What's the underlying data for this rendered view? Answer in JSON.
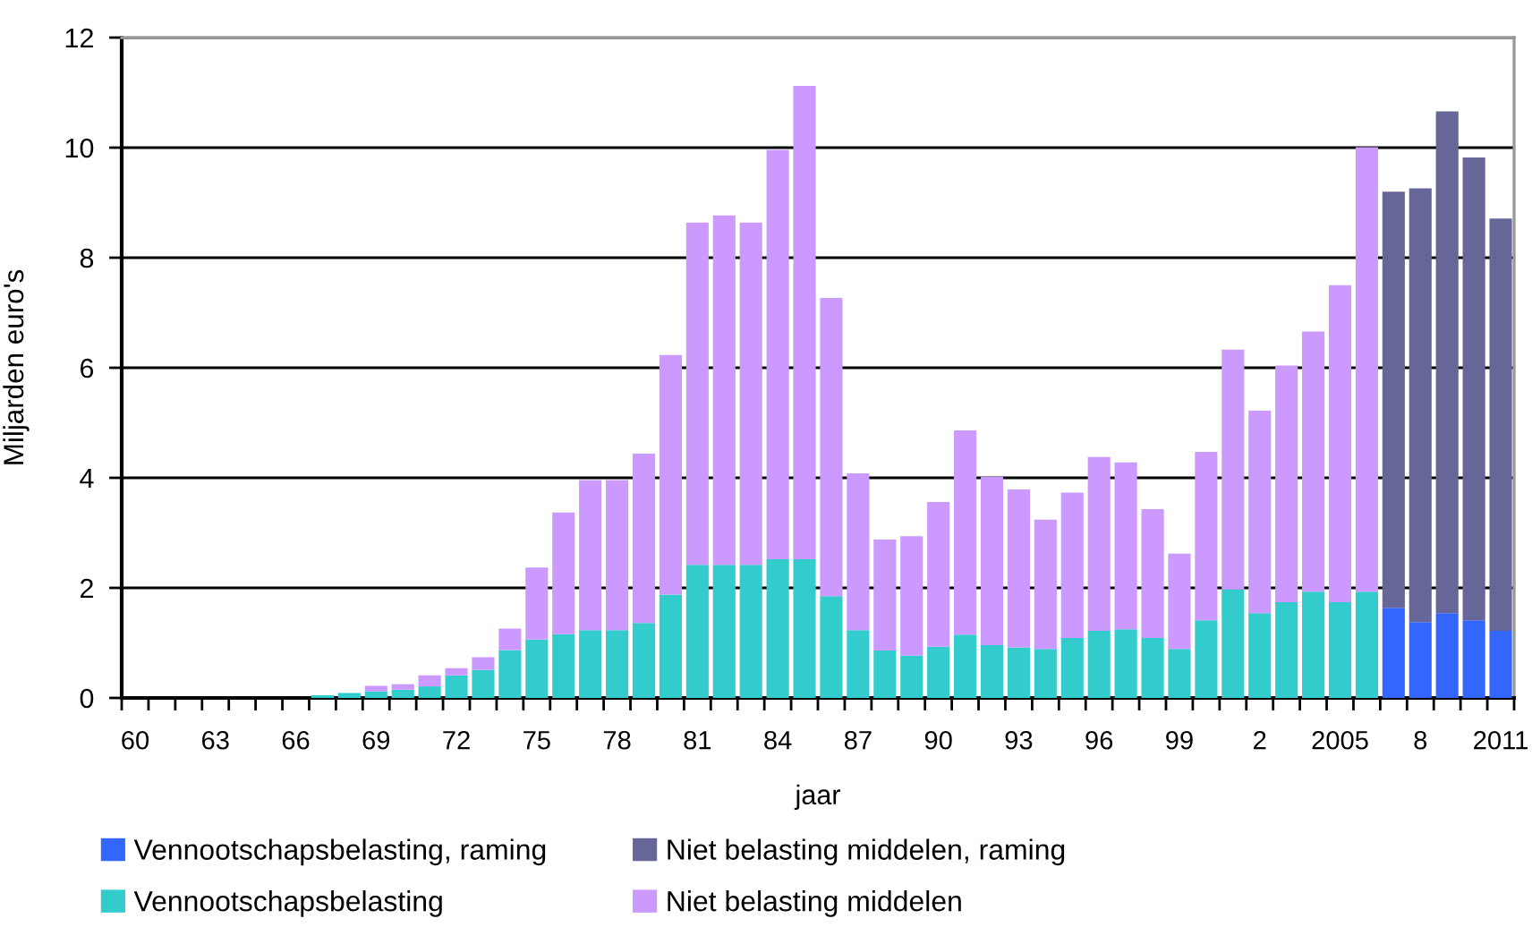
{
  "chart_data": {
    "type": "bar",
    "stacked": true,
    "categories": [
      "60",
      null,
      null,
      "63",
      null,
      null,
      "66",
      null,
      null,
      "69",
      null,
      null,
      "72",
      null,
      null,
      "75",
      null,
      null,
      "78",
      null,
      null,
      "81",
      null,
      null,
      "84",
      null,
      null,
      "87",
      null,
      null,
      "90",
      null,
      null,
      "93",
      null,
      null,
      "96",
      null,
      null,
      "99",
      null,
      null,
      "2",
      null,
      null,
      "2005",
      null,
      null,
      "8",
      null,
      null,
      "2011"
    ],
    "series": [
      {
        "name": "Vennootschapsbelasting, raming",
        "color": "#3366ff",
        "values": [
          null,
          null,
          null,
          null,
          null,
          null,
          null,
          null,
          null,
          null,
          null,
          null,
          null,
          null,
          null,
          null,
          null,
          null,
          null,
          null,
          null,
          null,
          null,
          null,
          null,
          null,
          null,
          null,
          null,
          null,
          null,
          null,
          null,
          null,
          null,
          null,
          null,
          null,
          null,
          null,
          null,
          null,
          null,
          null,
          null,
          null,
          null,
          1.64,
          1.38,
          1.54,
          1.41,
          1.22
        ]
      },
      {
        "name": "Niet belasting middelen, raming",
        "color": "#666699",
        "values": [
          null,
          null,
          null,
          null,
          null,
          null,
          null,
          null,
          null,
          null,
          null,
          null,
          null,
          null,
          null,
          null,
          null,
          null,
          null,
          null,
          null,
          null,
          null,
          null,
          null,
          null,
          null,
          null,
          null,
          null,
          null,
          null,
          null,
          null,
          null,
          null,
          null,
          null,
          null,
          null,
          null,
          null,
          null,
          null,
          null,
          null,
          null,
          7.56,
          7.88,
          9.12,
          8.41,
          7.49
        ]
      },
      {
        "name": "Vennootschapsbelasting",
        "color": "#33cccc",
        "values": [
          0,
          0,
          0,
          0,
          0,
          0,
          0,
          0.05,
          0.09,
          0.12,
          0.15,
          0.21,
          0.41,
          0.51,
          0.87,
          1.06,
          1.16,
          1.23,
          1.23,
          1.36,
          1.88,
          2.42,
          2.42,
          2.42,
          2.52,
          2.52,
          1.85,
          1.23,
          0.86,
          0.77,
          0.93,
          1.15,
          0.96,
          0.92,
          0.89,
          1.09,
          1.22,
          1.25,
          1.09,
          0.89,
          1.41,
          1.97,
          1.54,
          1.74,
          1.93,
          1.74,
          1.93,
          null,
          null,
          null,
          null,
          null
        ]
      },
      {
        "name": "Niet belasting middelen",
        "color": "#cc99ff",
        "values": [
          0,
          0,
          0,
          0,
          0,
          0,
          0,
          0,
          0,
          0.1,
          0.1,
          0.2,
          0.13,
          0.23,
          0.39,
          1.31,
          2.21,
          2.73,
          2.73,
          3.08,
          4.35,
          6.22,
          6.35,
          6.22,
          7.44,
          8.6,
          5.42,
          2.85,
          2.02,
          2.17,
          2.63,
          3.71,
          3.06,
          2.87,
          2.35,
          2.64,
          3.16,
          3.03,
          2.34,
          1.73,
          3.06,
          4.36,
          3.68,
          4.3,
          4.73,
          5.76,
          8.08,
          null,
          null,
          null,
          null,
          null
        ]
      }
    ],
    "xlabel": "jaar",
    "ylabel": "Miljarden euro's",
    "ylim": [
      0,
      12
    ],
    "yticks": [
      0,
      2,
      4,
      6,
      8,
      10,
      12
    ],
    "grid": "y",
    "legend": "bottom"
  }
}
